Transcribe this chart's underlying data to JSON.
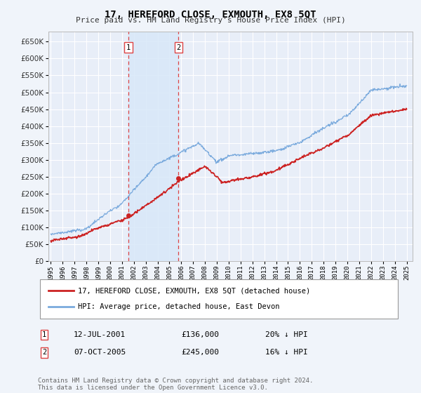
{
  "title": "17, HEREFORD CLOSE, EXMOUTH, EX8 5QT",
  "subtitle": "Price paid vs. HM Land Registry's House Price Index (HPI)",
  "ytick_values": [
    0,
    50000,
    100000,
    150000,
    200000,
    250000,
    300000,
    350000,
    400000,
    450000,
    500000,
    550000,
    600000,
    650000
  ],
  "ylim": [
    0,
    680000
  ],
  "xlim_start": 1994.8,
  "xlim_end": 2025.5,
  "background_color": "#f0f4fa",
  "plot_bg_color": "#e8eef8",
  "grid_color": "#ffffff",
  "hpi_color": "#7aaadd",
  "price_color": "#cc2222",
  "transaction1_date": 2001.54,
  "transaction1_price": 136000,
  "transaction2_date": 2005.77,
  "transaction2_price": 245000,
  "legend_label_price": "17, HEREFORD CLOSE, EXMOUTH, EX8 5QT (detached house)",
  "legend_label_hpi": "HPI: Average price, detached house, East Devon",
  "annotation1_date": "12-JUL-2001",
  "annotation1_price": "£136,000",
  "annotation1_hpi": "20% ↓ HPI",
  "annotation2_date": "07-OCT-2005",
  "annotation2_price": "£245,000",
  "annotation2_hpi": "16% ↓ HPI",
  "footer": "Contains HM Land Registry data © Crown copyright and database right 2024.\nThis data is licensed under the Open Government Licence v3.0."
}
